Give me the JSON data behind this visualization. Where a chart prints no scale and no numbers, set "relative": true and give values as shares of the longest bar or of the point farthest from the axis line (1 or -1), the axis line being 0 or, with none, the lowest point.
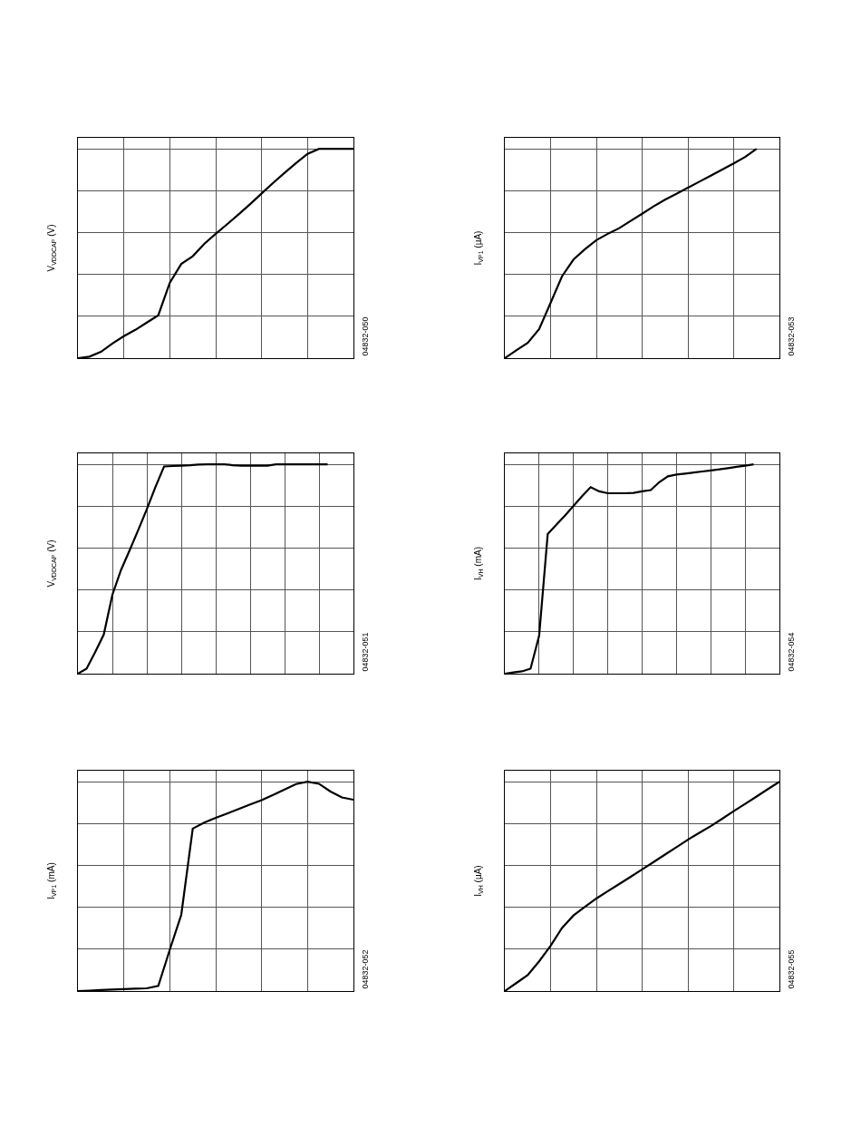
{
  "chart_data": [
    {
      "type": "line",
      "ylabel": "V$_{VDDCAP}$ (V)",
      "relative": true,
      "grid": true,
      "line_style": "solid",
      "marker": "none",
      "categories": [
        null,
        null,
        null,
        null,
        null,
        null,
        null,
        null,
        null,
        null,
        null,
        null,
        null,
        null,
        null,
        null,
        null,
        null,
        null,
        null,
        null,
        null,
        null,
        null,
        null
      ],
      "series": [
        {
          "color": "#000000",
          "values": [
            0,
            0.007,
            0.03,
            0.07,
            0.105,
            0.135,
            0.17,
            0.205,
            0.36,
            0.45,
            0.487,
            0.546,
            0.594,
            0.64,
            0.687,
            0.736,
            0.787,
            0.837,
            0.885,
            0.932,
            0.976,
            1,
            1,
            1,
            1
          ]
        }
      ],
      "annotations": [
        "04832-050"
      ]
    },
    {
      "type": "line",
      "ylabel": "I$_{VP1}$ (µA)",
      "relative": true,
      "grid": true,
      "line_style": "solid",
      "marker": "none",
      "categories": [
        null,
        null,
        null,
        null,
        null,
        null,
        null,
        null,
        null,
        null,
        null,
        null,
        null,
        null,
        null,
        null,
        null,
        null,
        null,
        null,
        null,
        null,
        null,
        null,
        null
      ],
      "series": [
        {
          "color": "#000000",
          "values": [
            0,
            0.037,
            0.073,
            0.139,
            0.264,
            0.391,
            0.471,
            0.52,
            0.564,
            0.594,
            0.621,
            0.656,
            0.69,
            0.725,
            0.757,
            0.785,
            0.814,
            0.843,
            0.872,
            0.901,
            0.93,
            0.961,
            1,
            null,
            null
          ]
        }
      ],
      "annotations": [
        "04832-053"
      ]
    },
    {
      "type": "line",
      "ylabel": "V$_{VDDCAP}$ (V)",
      "relative": true,
      "grid": true,
      "line_style": "solid",
      "marker": "none",
      "categories": [
        null,
        null,
        null,
        null,
        null,
        null,
        null,
        null,
        null,
        null,
        null,
        null,
        null,
        null,
        null,
        null,
        null,
        null,
        null,
        null,
        null,
        null,
        null,
        null,
        null,
        null,
        null,
        null,
        null,
        null,
        null,
        null,
        null
      ],
      "series": [
        {
          "color": "#000000",
          "values": [
            0,
            0.024,
            0.103,
            0.187,
            0.377,
            0.495,
            0.589,
            0.686,
            0.786,
            0.892,
            0.99,
            0.992,
            0.994,
            0.996,
            0.999,
            1,
            1,
            1,
            0.996,
            0.994,
            0.994,
            0.994,
            0.994,
            1,
            1,
            1,
            1,
            1,
            1,
            1,
            null,
            null,
            null
          ]
        }
      ],
      "annotations": [
        "04832-051"
      ]
    },
    {
      "type": "line",
      "ylabel": "I$_{VH}$ (mA)",
      "relative": true,
      "grid": true,
      "line_style": "solid",
      "marker": "none",
      "categories": [
        null,
        null,
        null,
        null,
        null,
        null,
        null,
        null,
        null,
        null,
        null,
        null,
        null,
        null,
        null,
        null,
        null,
        null,
        null,
        null,
        null,
        null,
        null,
        null,
        null,
        null,
        null,
        null,
        null,
        null,
        null,
        null,
        null
      ],
      "series": [
        {
          "color": "#000000",
          "values": [
            0,
            0.006,
            0.011,
            0.024,
            0.182,
            0.667,
            0.711,
            0.755,
            0.801,
            0.848,
            0.891,
            0.871,
            0.862,
            0.862,
            0.862,
            0.864,
            0.871,
            0.877,
            0.915,
            0.943,
            0.951,
            0.956,
            0.961,
            0.966,
            0.971,
            0.976,
            0.982,
            0.988,
            0.994,
            1,
            null,
            null,
            null
          ]
        }
      ],
      "annotations": [
        "04832-054"
      ]
    },
    {
      "type": "line",
      "ylabel": "I$_{VP1}$ (mA)",
      "relative": true,
      "grid": true,
      "line_style": "solid",
      "marker": "none",
      "categories": [
        null,
        null,
        null,
        null,
        null,
        null,
        null,
        null,
        null,
        null,
        null,
        null,
        null,
        null,
        null,
        null,
        null,
        null,
        null,
        null,
        null,
        null,
        null,
        null,
        null
      ],
      "series": [
        {
          "color": "#000000",
          "values": [
            0,
            0.002,
            0.005,
            0.007,
            0.009,
            0.011,
            0.013,
            0.025,
            0.197,
            0.364,
            0.776,
            0.805,
            0.827,
            0.848,
            0.87,
            0.891,
            0.912,
            0.937,
            0.963,
            0.989,
            1,
            0.99,
            0.953,
            0.925,
            0.914
          ]
        }
      ],
      "annotations": [
        "04832-052"
      ]
    },
    {
      "type": "line",
      "ylabel": "I$_{VH}$ (µA)",
      "relative": true,
      "grid": true,
      "line_style": "solid",
      "marker": "none",
      "categories": [
        null,
        null,
        null,
        null,
        null,
        null,
        null,
        null,
        null,
        null,
        null,
        null,
        null,
        null,
        null,
        null,
        null,
        null,
        null,
        null,
        null,
        null,
        null,
        null,
        null
      ],
      "series": [
        {
          "color": "#000000",
          "values": [
            0,
            0.038,
            0.076,
            0.142,
            0.216,
            0.301,
            0.361,
            0.402,
            0.442,
            0.477,
            0.511,
            0.546,
            0.581,
            0.616,
            0.652,
            0.687,
            0.723,
            0.756,
            0.788,
            0.823,
            0.859,
            0.894,
            0.929,
            0.965,
            1
          ]
        }
      ],
      "annotations": [
        "04832-055"
      ]
    }
  ]
}
